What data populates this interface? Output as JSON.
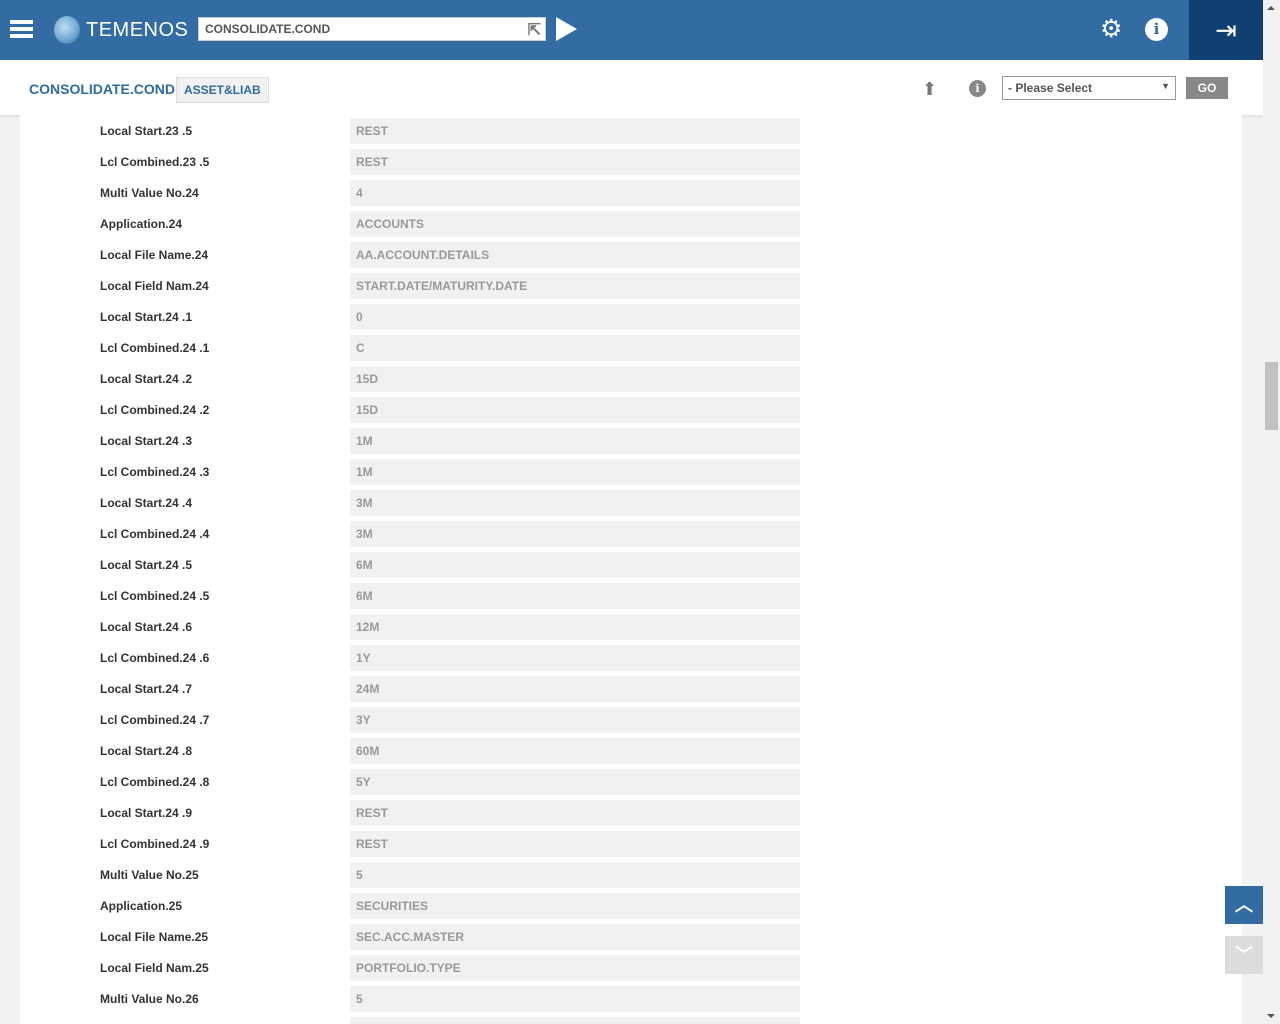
{
  "header": {
    "brand": "TEMENOS",
    "command_value": "CONSOLIDATE.COND"
  },
  "subheader": {
    "title": "CONSOLIDATE.COND",
    "record_id": "ASSET&LIAB",
    "select_value": "- Please Select",
    "go_label": "GO"
  },
  "colors": {
    "header": "#326ca3",
    "logout": "#0f4071",
    "title": "#2f6aa3"
  },
  "icons": [
    "menu-icon",
    "globe-logo",
    "expand-arrow-icon",
    "play-icon",
    "gear-icon",
    "info-icon",
    "logout-icon",
    "upload-icon",
    "chevron-up-icon",
    "chevron-down-icon"
  ],
  "fields": [
    {
      "label": "Local Start.23 .5",
      "value": "REST"
    },
    {
      "label": "Lcl Combined.23 .5",
      "value": "REST"
    },
    {
      "label": "Multi Value No.24",
      "value": "4"
    },
    {
      "label": "Application.24",
      "value": "ACCOUNTS"
    },
    {
      "label": "Local File Name.24",
      "value": "AA.ACCOUNT.DETAILS"
    },
    {
      "label": "Local Field Nam.24",
      "value": "START.DATE/MATURITY.DATE"
    },
    {
      "label": "Local Start.24 .1",
      "value": "0"
    },
    {
      "label": "Lcl Combined.24 .1",
      "value": "C"
    },
    {
      "label": "Local Start.24 .2",
      "value": "15D"
    },
    {
      "label": "Lcl Combined.24 .2",
      "value": "15D"
    },
    {
      "label": "Local Start.24 .3",
      "value": "1M"
    },
    {
      "label": "Lcl Combined.24 .3",
      "value": "1M"
    },
    {
      "label": "Local Start.24 .4",
      "value": "3M"
    },
    {
      "label": "Lcl Combined.24 .4",
      "value": "3M"
    },
    {
      "label": "Local Start.24 .5",
      "value": "6M"
    },
    {
      "label": "Lcl Combined.24 .5",
      "value": "6M"
    },
    {
      "label": "Local Start.24 .6",
      "value": "12M"
    },
    {
      "label": "Lcl Combined.24 .6",
      "value": "1Y"
    },
    {
      "label": "Local Start.24 .7",
      "value": "24M"
    },
    {
      "label": "Lcl Combined.24 .7",
      "value": "3Y"
    },
    {
      "label": "Local Start.24 .8",
      "value": "60M"
    },
    {
      "label": "Lcl Combined.24 .8",
      "value": "5Y"
    },
    {
      "label": "Local Start.24 .9",
      "value": "REST"
    },
    {
      "label": "Lcl Combined.24 .9",
      "value": "REST"
    },
    {
      "label": "Multi Value No.25",
      "value": "5"
    },
    {
      "label": "Application.25",
      "value": "SECURITIES"
    },
    {
      "label": "Local File Name.25",
      "value": "SEC.ACC.MASTER"
    },
    {
      "label": "Local Field Nam.25",
      "value": "PORTFOLIO.TYPE"
    },
    {
      "label": "Multi Value No.26",
      "value": "5"
    },
    {
      "label": "",
      "value": ""
    }
  ]
}
